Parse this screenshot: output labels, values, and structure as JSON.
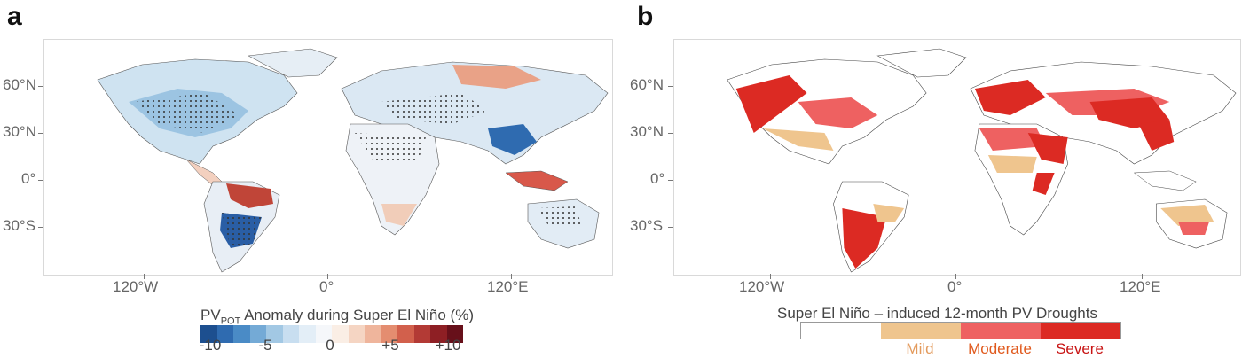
{
  "panels": {
    "a": {
      "letter": "a",
      "lat_labels": [
        "60°N",
        "30°N",
        "0°",
        "30°S"
      ],
      "lon_labels": [
        "120°W",
        "0°",
        "120°E"
      ],
      "colorbar": {
        "title_main": "PV",
        "title_sub": "POT",
        "title_rest": " Anomaly during Super El Niño (%)",
        "ticks": [
          "-10",
          "-5",
          "0",
          "+5",
          "+10"
        ],
        "colors": [
          "#1d4f8f",
          "#2f6bb0",
          "#4a8bc6",
          "#74aad6",
          "#a2c8e4",
          "#c8def0",
          "#e3eef7",
          "#f5f7fa",
          "#faeee5",
          "#f5d5c3",
          "#efb59c",
          "#e48d70",
          "#d2604c",
          "#b33a35",
          "#8e1f24",
          "#67101a"
        ]
      }
    },
    "b": {
      "letter": "b",
      "lat_labels": [
        "60°N",
        "30°N",
        "0°",
        "30°S"
      ],
      "lon_labels": [
        "120°W",
        "0°",
        "120°E"
      ],
      "legend": {
        "title": "Super El Niño – induced 12-month PV Droughts",
        "categories": [
          {
            "label": "",
            "color": "#ffffff",
            "text_color": "#444"
          },
          {
            "label": "Mild",
            "color": "#efc58e",
            "text_color": "#e39a5c"
          },
          {
            "label": "Moderate",
            "color": "#ee6161",
            "text_color": "#e05a1e"
          },
          {
            "label": "Severe",
            "color": "#dc2a23",
            "text_color": "#c81414"
          }
        ]
      }
    }
  }
}
